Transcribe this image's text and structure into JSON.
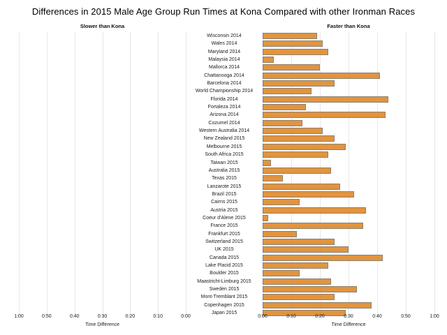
{
  "title": "Differences in 2015 Male Age Group Run Times at Kona Compared with other Ironman Races",
  "headers": {
    "left": "Slower than Kona",
    "right": "Faster than Kona"
  },
  "axis": {
    "left_ticks": [
      "1:00",
      "0:50",
      "0:40",
      "0:30",
      "0:20",
      "0:10",
      "0:00"
    ],
    "right_ticks": [
      "0:00",
      "0:10",
      "0:20",
      "0:30",
      "0:40",
      "0:50",
      "1:00"
    ],
    "left_label": "Time Difference",
    "right_label": "Time Difference"
  },
  "chart_data": {
    "type": "bar",
    "orientation": "horizontal",
    "title": "Differences in 2015 Male Age Group Run Times at Kona Compared with other Ironman Races",
    "xlabel": "Time Difference",
    "x_tick_format": "h:mm",
    "x_range_minutes": [
      -60,
      60
    ],
    "bars_side": "right",
    "grid": "vertical-light",
    "bar_color": "#e2943e",
    "bar_border_color": "#8c8070",
    "categories": [
      "Wisconsin 2014",
      "Wales 2014",
      "Maryland 2014",
      "Malaysia 2014",
      "Mallorca 2014",
      "Chattanooga 2014",
      "Barcelona 2014",
      "World Championship 2014",
      "Florida 2014",
      "Fortaleza 2014",
      "Arizona 2014",
      "Cozumel 2014",
      "Western Australia 2014",
      "New Zealand 2015",
      "Melbourne 2015",
      "South Africa 2015",
      "Taiwan 2015",
      "Australia 2015",
      "Texas 2015",
      "Lanzarote 2015",
      "Brazil 2015",
      "Cairns 2015",
      "Austria 2015",
      "Coeur d'Alene 2015",
      "France 2015",
      "Frankfurt 2015",
      "Switzerland 2015",
      "UK 2015",
      "Canada 2015",
      "Lake Placid 2015",
      "Boulder 2015",
      "Maastricht-Limburg 2015",
      "Sweden 2015",
      "Mont-Tremblant 2015",
      "Copenhagen 2015",
      "Japan 2015"
    ],
    "values_minutes_faster": [
      19,
      21,
      23,
      4,
      20,
      41,
      25,
      17,
      44,
      15,
      43,
      14,
      21,
      25,
      29,
      23,
      3,
      24,
      7,
      27,
      32,
      13,
      36,
      2,
      35,
      12,
      25,
      30,
      42,
      23,
      13,
      24,
      33,
      25,
      38,
      29
    ]
  }
}
